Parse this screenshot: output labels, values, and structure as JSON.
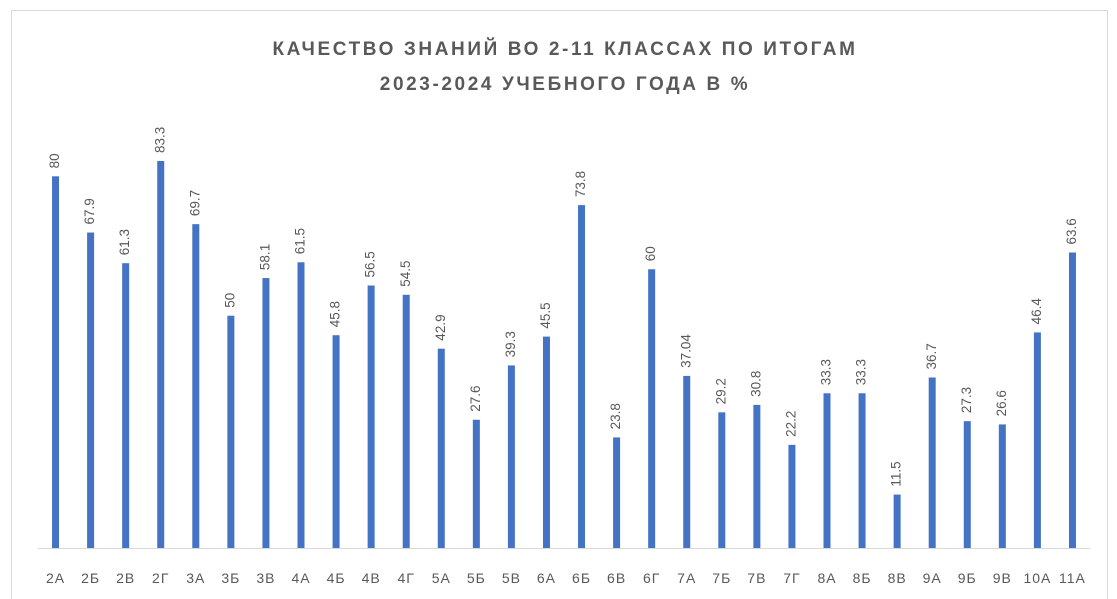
{
  "chart_data": {
    "type": "bar",
    "title": [
      "КАЧЕСТВО ЗНАНИЙ ВО 2-11 КЛАССАХ ПО ИТОГАМ",
      "2023-2024 УЧЕБНОГО ГОДА В %"
    ],
    "categories": [
      "2А",
      "2Б",
      "2В",
      "2Г",
      "3А",
      "3Б",
      "3В",
      "4А",
      "4Б",
      "4В",
      "4Г",
      "5А",
      "5Б",
      "5В",
      "6А",
      "6Б",
      "6В",
      "6Г",
      "7А",
      "7Б",
      "7В",
      "7Г",
      "8А",
      "8Б",
      "8В",
      "9А",
      "9Б",
      "9В",
      "10А",
      "11А"
    ],
    "values": [
      80,
      67.9,
      61.3,
      83.3,
      69.7,
      50,
      58.1,
      61.5,
      45.8,
      56.5,
      54.5,
      42.9,
      27.6,
      39.3,
      45.5,
      73.8,
      23.8,
      60,
      37.04,
      29.2,
      30.8,
      22.2,
      33.3,
      33.3,
      11.5,
      36.7,
      27.3,
      26.6,
      46.4,
      63.6
    ],
    "color": "#4472c4"
  }
}
